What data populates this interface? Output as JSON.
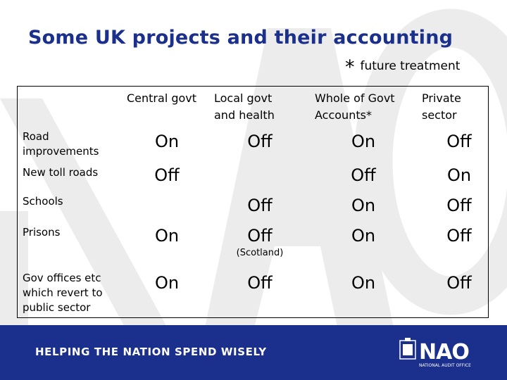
{
  "title": "Some UK projects and their accounting",
  "subtitle": {
    "star": "*",
    "text": "future treatment"
  },
  "columns": [
    "Central govt",
    "Local govt\nand health",
    "Whole of Govt\nAccounts*",
    "Private\nsector"
  ],
  "rows": [
    {
      "label": " Road\nimprovements",
      "cells": [
        "On",
        "Off",
        "On",
        "Off"
      ]
    },
    {
      "label": "New toll roads",
      "cells": [
        "Off",
        "",
        "Off",
        "On"
      ]
    },
    {
      "label": "Schools",
      "cells": [
        "",
        "Off",
        "On",
        "Off"
      ]
    },
    {
      "label": "Prisons",
      "cells": [
        "On",
        "Off",
        "On",
        "Off"
      ],
      "note": "(Scotland)"
    },
    {
      "label": "Gov offices etc\nwhich revert to\npublic sector",
      "cells": [
        "On",
        "Off",
        "On",
        "Off"
      ]
    }
  ],
  "footer": {
    "tagline": "HELPING THE NATION SPEND WISELY",
    "logo_text": "NAO",
    "logo_subtext": "NATIONAL AUDIT OFFICE"
  },
  "colors": {
    "brand": "#1b2f8c",
    "watermark": "#e9e9e9"
  }
}
